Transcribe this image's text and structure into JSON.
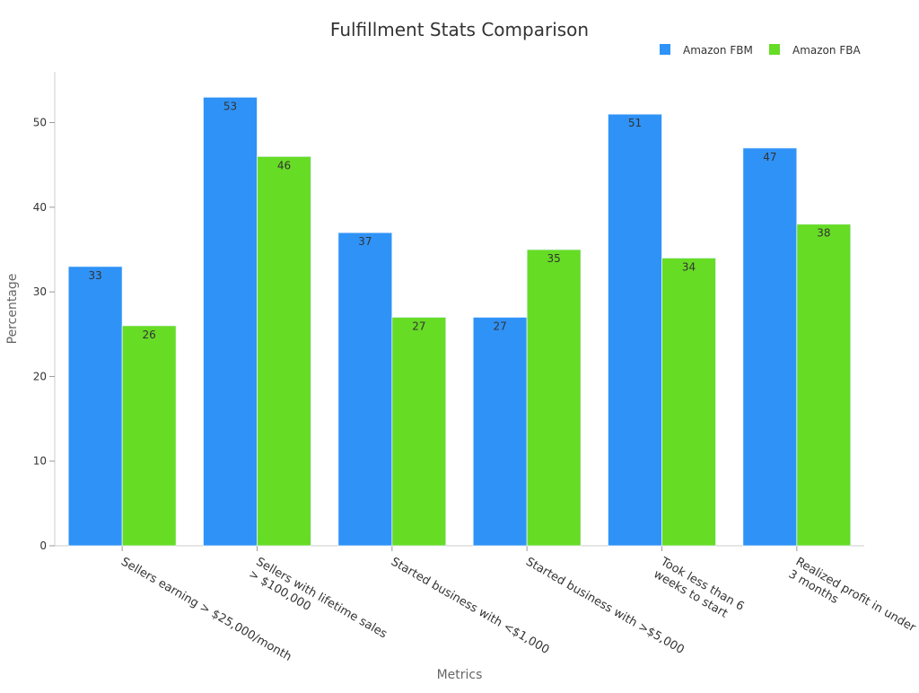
{
  "chart_data": {
    "type": "bar",
    "title": "Fulfillment Stats Comparison",
    "xlabel": "Metrics",
    "ylabel": "Percentage",
    "categories": [
      [
        "Sellers earning > $25,000/month"
      ],
      [
        "Sellers with lifetime sales",
        "> $100,000"
      ],
      [
        "Started business with <$1,000"
      ],
      [
        "Started business with >$5,000"
      ],
      [
        "Took less than 6",
        "weeks to start"
      ],
      [
        "Realized profit in under",
        "3 months"
      ]
    ],
    "series": [
      {
        "name": "Amazon FBM",
        "color": "#2f92f7",
        "values": [
          33,
          53,
          37,
          27,
          51,
          47
        ]
      },
      {
        "name": "Amazon FBA",
        "color": "#66dc25",
        "values": [
          26,
          46,
          27,
          35,
          34,
          38
        ]
      }
    ],
    "ylim": [
      0,
      56
    ],
    "yticks": [
      0,
      10,
      20,
      30,
      40,
      50
    ],
    "legend_position": "top-right",
    "grid": false
  }
}
